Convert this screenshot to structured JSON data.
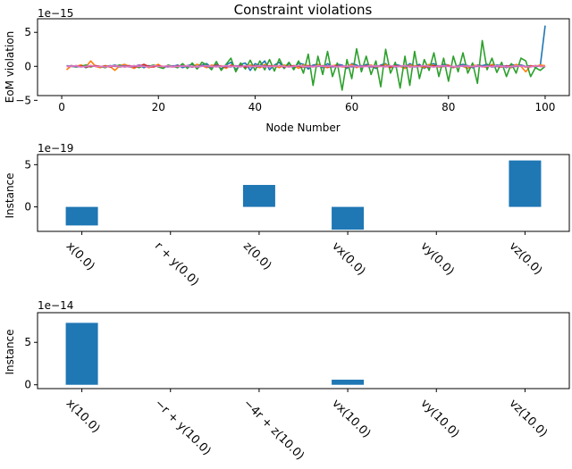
{
  "chart_data": [
    {
      "type": "line",
      "title": "Constraint violations",
      "xlabel": "Node Number",
      "ylabel": "EoM violation",
      "offset_text": "1e−15",
      "xlim": [
        -5,
        105
      ],
      "ylim": [
        -4.3,
        7.0
      ],
      "xticks": [
        0,
        20,
        40,
        60,
        80,
        100
      ],
      "xtick_labels": [
        "0",
        "20",
        "40",
        "60",
        "80",
        "100"
      ],
      "yticks": [
        -5,
        0,
        5
      ],
      "ytick_labels": [
        "−5",
        "0",
        "5"
      ],
      "x": [
        1,
        2,
        3,
        4,
        5,
        6,
        7,
        8,
        9,
        10,
        11,
        12,
        13,
        14,
        15,
        16,
        17,
        18,
        19,
        20,
        21,
        22,
        23,
        24,
        25,
        26,
        27,
        28,
        29,
        30,
        31,
        32,
        33,
        34,
        35,
        36,
        37,
        38,
        39,
        40,
        41,
        42,
        43,
        44,
        45,
        46,
        47,
        48,
        49,
        50,
        51,
        52,
        53,
        54,
        55,
        56,
        57,
        58,
        59,
        60,
        61,
        62,
        63,
        64,
        65,
        66,
        67,
        68,
        69,
        70,
        71,
        72,
        73,
        74,
        75,
        76,
        77,
        78,
        79,
        80,
        81,
        82,
        83,
        84,
        85,
        86,
        87,
        88,
        89,
        90,
        91,
        92,
        93,
        94,
        95,
        96,
        97,
        98,
        99,
        100
      ],
      "series": [
        {
          "color": "#1f77b4",
          "values": [
            0.1,
            0.0,
            -0.1,
            0.2,
            -0.2,
            0.1,
            0.0,
            -0.1,
            0.1,
            0.0,
            0.2,
            -0.1,
            0.0,
            0.1,
            -0.1,
            0.2,
            -0.2,
            0.1,
            0.0,
            0.1,
            -0.2,
            0.1,
            0.0,
            0.2,
            -0.2,
            0.1,
            0.3,
            -0.3,
            0.2,
            0.4,
            -0.2,
            0.3,
            -0.4,
            0.2,
            0.6,
            -0.5,
            0.3,
            0.5,
            -0.6,
            0.4,
            0.1,
            0.8,
            -0.5,
            0.2,
            0.6,
            -0.3,
            0.4,
            -0.2,
            0.5,
            0.3,
            -0.4,
            0.2,
            0.3,
            -0.2,
            0.4,
            -0.1,
            0.3,
            0.2,
            -0.3,
            0.4,
            0.2,
            -0.2,
            0.3,
            0.1,
            -0.3,
            0.2,
            0.4,
            -0.2,
            0.3,
            0.1,
            -0.2,
            0.4,
            0.0,
            0.3,
            -0.3,
            0.2,
            0.4,
            -0.1,
            0.3,
            0.2,
            -0.2,
            0.1,
            0.3,
            0.1,
            -0.2,
            0.2,
            0.1,
            0.3,
            -0.1,
            0.2,
            0.1,
            -0.2,
            0.3,
            0.1,
            0.2,
            0.0,
            0.1,
            -0.1,
            0.1,
            6.0
          ]
        },
        {
          "color": "#ff7f0e",
          "values": [
            -0.5,
            0.1,
            0.0,
            0.2,
            -0.1,
            0.8,
            0.0,
            -0.2,
            0.1,
            0.0,
            -0.6,
            0.1,
            0.3,
            0.0,
            -0.3,
            0.2,
            0.1,
            -0.2,
            0.0,
            0.3,
            -0.2,
            0.1,
            0.0,
            -0.1,
            0.2,
            0.0,
            -0.1,
            0.3,
            0.1,
            -0.2,
            0.2,
            0.0,
            0.1,
            -0.3,
            0.2,
            0.0,
            0.1,
            -0.1,
            0.2,
            0.0,
            -0.2,
            0.3,
            0.0,
            0.1,
            -0.2,
            0.2,
            0.0,
            0.1,
            -0.3,
            0.2,
            0.1,
            -0.1,
            0.3,
            0.0,
            -0.2,
            0.1,
            0.2,
            -0.1,
            0.0,
            0.3,
            -0.2,
            0.1,
            0.0,
            0.2,
            -0.1,
            0.0,
            0.3,
            -0.2,
            0.1,
            0.0,
            -0.3,
            0.2,
            0.1,
            0.0,
            -0.2,
            0.3,
            0.1,
            -0.1,
            0.0,
            0.2,
            -0.2,
            0.1,
            0.0,
            -0.3,
            0.2,
            0.1,
            0.0,
            -0.2,
            0.3,
            0.0,
            0.1,
            0.0,
            -0.2,
            0.3,
            0.0,
            -0.8,
            0.1,
            0.0,
            0.2,
            0.1
          ]
        },
        {
          "color": "#2ca02c",
          "values": [
            0.0,
            0.1,
            -0.1,
            0.0,
            0.2,
            -0.1,
            0.1,
            0.0,
            -0.2,
            0.1,
            0.0,
            0.2,
            -0.1,
            0.0,
            0.1,
            -0.2,
            0.1,
            0.0,
            0.2,
            -0.1,
            -0.3,
            0.2,
            0.0,
            -0.2,
            0.4,
            -0.3,
            0.5,
            -0.4,
            0.6,
            0.2,
            -0.5,
            0.7,
            -0.6,
            0.3,
            1.2,
            -0.8,
            0.5,
            -0.4,
            0.9,
            -0.6,
            0.8,
            -0.5,
            1.0,
            -0.7,
            1.1,
            -0.3,
            0.6,
            -0.5,
            0.8,
            -1.0,
            1.8,
            -2.8,
            1.5,
            -1.2,
            2.2,
            -1.5,
            0.5,
            -3.5,
            1.0,
            -1.8,
            2.6,
            -0.8,
            1.5,
            -1.2,
            0.8,
            -3.0,
            2.5,
            -1.0,
            0.6,
            -3.2,
            1.5,
            -2.8,
            2.2,
            -1.8,
            1.0,
            -0.6,
            2.0,
            -1.5,
            1.2,
            -2.2,
            1.5,
            -0.8,
            2.0,
            -1.0,
            0.5,
            -2.5,
            3.8,
            -0.5,
            1.2,
            -0.9,
            0.6,
            -1.5,
            0.4,
            -1.0,
            1.2,
            0.8,
            -1.5,
            -0.2,
            -0.6,
            0.0
          ]
        },
        {
          "color": "#d62728",
          "values": [
            0.0,
            0.0,
            0.1,
            0.0,
            -0.1,
            0.0,
            0.1,
            0.0,
            0.0,
            -0.1,
            0.1,
            0.0,
            0.0,
            0.1,
            -0.1,
            0.0,
            0.3,
            0.0,
            -0.1,
            0.1,
            0.0,
            0.0,
            -0.1,
            0.1,
            0.0,
            0.1,
            -0.1,
            0.0,
            0.1,
            0.0,
            -0.1,
            0.2,
            0.0,
            -0.1,
            0.1,
            0.0,
            0.1,
            -0.1,
            0.0,
            0.1,
            0.0,
            -0.1,
            0.1,
            0.0,
            0.1,
            -0.1,
            0.0,
            0.1,
            0.0,
            -0.1,
            0.1,
            0.0,
            0.0,
            0.1,
            -0.1,
            0.0,
            0.1,
            0.0,
            -0.1,
            0.1,
            0.0,
            0.0,
            0.1,
            -0.1,
            0.0,
            0.1,
            0.0,
            -0.1,
            0.1,
            0.0,
            0.1,
            -0.1,
            0.0,
            0.1,
            0.0,
            -0.1,
            0.1,
            0.0,
            0.0,
            0.1,
            -0.1,
            0.0,
            0.1,
            0.0,
            -0.1,
            0.1,
            0.0,
            0.0,
            0.1,
            0.0,
            -0.1,
            0.1,
            0.0,
            0.0,
            0.1,
            -0.1,
            0.0,
            0.1,
            0.0,
            0.0
          ]
        },
        {
          "color": "#9467bd",
          "values": [
            0.0,
            0.1,
            0.0,
            -0.1,
            0.0,
            0.1,
            0.0,
            0.0,
            -0.1,
            0.1,
            0.0,
            0.0,
            0.1,
            -0.1,
            0.0,
            0.2,
            0.0,
            -0.1,
            0.1,
            0.0,
            0.0,
            -0.1,
            0.1,
            0.0,
            0.1,
            0.0,
            -0.1,
            0.0,
            0.1,
            0.0,
            -0.1,
            0.1,
            0.0,
            0.0,
            -0.1,
            0.1,
            0.0,
            0.1,
            -0.1,
            0.0,
            0.0,
            0.1,
            -0.1,
            0.0,
            0.1,
            0.0,
            -0.1,
            0.0,
            0.1,
            0.0,
            -0.1,
            0.1,
            0.0,
            0.0,
            0.1,
            -0.1,
            0.0,
            0.1,
            0.0,
            -0.1,
            0.0,
            0.1,
            0.0,
            -0.1,
            0.1,
            0.0,
            0.0,
            0.1,
            -0.1,
            0.0,
            0.1,
            0.0,
            -0.1,
            0.0,
            0.1,
            0.0,
            -0.1,
            0.1,
            0.0,
            0.0,
            -0.1,
            0.1,
            0.0,
            0.1,
            -0.1,
            0.0,
            0.0,
            0.1,
            -0.1,
            0.0,
            0.1,
            0.0,
            -0.1,
            0.0,
            0.1,
            0.0,
            -0.1,
            0.1,
            0.0,
            0.0
          ]
        },
        {
          "color": "#e377c2",
          "values": [
            0.0,
            0.0,
            0.1,
            -0.1,
            0.0,
            0.1,
            0.0,
            0.0,
            -0.1,
            0.0,
            0.1,
            0.0,
            -0.1,
            0.0,
            0.1,
            0.0,
            0.0,
            -0.1,
            0.1,
            0.0,
            0.0,
            0.1,
            -0.1,
            0.0,
            0.0,
            0.1,
            0.0,
            -0.1,
            0.0,
            0.1,
            0.0,
            -0.1,
            0.0,
            0.1,
            0.0,
            0.0,
            -0.1,
            0.1,
            0.0,
            0.0,
            0.1,
            -0.1,
            0.0,
            0.0,
            0.1,
            0.0,
            -0.1,
            0.0,
            0.1,
            0.0,
            0.0,
            -0.1,
            0.1,
            0.0,
            0.0,
            0.1,
            -0.1,
            0.0,
            0.0,
            0.1,
            0.0,
            -0.1,
            0.0,
            0.1,
            0.0,
            0.0,
            -0.1,
            0.1,
            0.0,
            0.0,
            0.1,
            -0.1,
            0.0,
            0.0,
            0.1,
            0.0,
            -0.1,
            0.0,
            0.1,
            0.0,
            0.0,
            -0.1,
            0.1,
            0.0,
            0.0,
            0.1,
            -0.1,
            0.0,
            0.0,
            0.1,
            0.0,
            -0.1,
            0.0,
            0.1,
            0.0,
            0.0,
            -0.1,
            0.1,
            0.0,
            0.0
          ]
        }
      ]
    },
    {
      "type": "bar",
      "title": "",
      "xlabel": "",
      "ylabel": "Instance",
      "offset_text": "1e−19",
      "ylim": [
        -2.9,
        6.2
      ],
      "yticks": [
        0,
        5
      ],
      "ytick_labels": [
        "0",
        "5"
      ],
      "categories": [
        "x(0.0)",
        "r + y(0.0)",
        "z(0.0)",
        "vx(0.0)",
        "vy(0.0)",
        "vz(0.0)"
      ],
      "values": [
        -2.2,
        0,
        2.6,
        -2.7,
        0,
        5.5
      ],
      "bar_color": "#1f77b4"
    },
    {
      "type": "bar",
      "title": "",
      "xlabel": "",
      "ylabel": "Instance",
      "offset_text": "1e−14",
      "ylim": [
        -0.45,
        8.5
      ],
      "yticks": [
        0,
        5
      ],
      "ytick_labels": [
        "0",
        "5"
      ],
      "categories": [
        "x(10.0)",
        "−r + y(10.0)",
        "−4r + z(10.0)",
        "vx(10.0)",
        "vy(10.0)",
        "vz(10.0)"
      ],
      "values": [
        7.3,
        0,
        0,
        0.6,
        0,
        0
      ],
      "bar_color": "#1f77b4"
    }
  ]
}
